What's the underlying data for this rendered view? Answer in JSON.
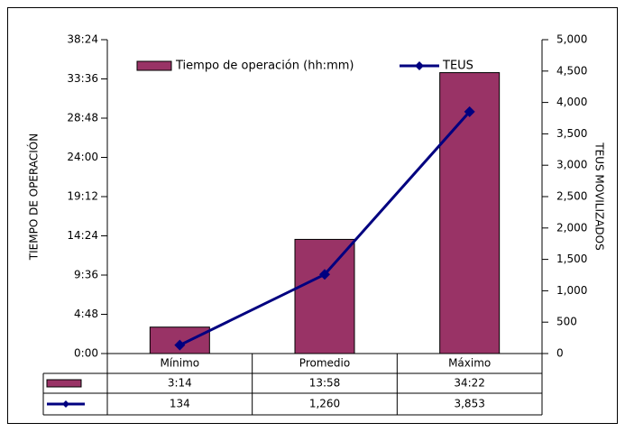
{
  "chart_data": {
    "type": "bar_line",
    "y_label": "TIEMPO DE OPERACIÓN",
    "y2_label": "TEUS MOVILIZADOS",
    "categories": [
      "Mínimo",
      "Promedio",
      "Máximo"
    ],
    "series": [
      {
        "name": "Tiempo de operación (hh:mm)",
        "type": "bar",
        "axis": "y",
        "color": "#993366",
        "values": [
          194,
          838,
          2062
        ],
        "value_labels": [
          "3:14",
          "13:58",
          "34:22"
        ]
      },
      {
        "name": "TEUS",
        "type": "line",
        "axis": "y2",
        "color": "#000080",
        "values": [
          134,
          1260,
          3853
        ],
        "value_labels": [
          "134",
          "1,260",
          "3,853"
        ]
      }
    ],
    "ylim": [
      0,
      2304
    ],
    "yticks": [
      {
        "value": 0,
        "label": "0:00"
      },
      {
        "value": 288,
        "label": "4:48"
      },
      {
        "value": 576,
        "label": "9:36"
      },
      {
        "value": 864,
        "label": "14:24"
      },
      {
        "value": 1152,
        "label": "19:12"
      },
      {
        "value": 1440,
        "label": "24:00"
      },
      {
        "value": 1728,
        "label": "28:48"
      },
      {
        "value": 2016,
        "label": "33:36"
      },
      {
        "value": 2304,
        "label": "38:24"
      }
    ],
    "y2lim": [
      0,
      5000
    ],
    "y2ticks": [
      0,
      500,
      {
        "value": 1000,
        "label": "1,000"
      },
      {
        "value": 1500,
        "label": "1,500"
      },
      {
        "value": 2000,
        "label": "2,000"
      },
      {
        "value": 2500,
        "label": "2,500"
      },
      {
        "value": 3000,
        "label": "3,000"
      },
      {
        "value": 3500,
        "label": "3,500"
      },
      {
        "value": 4000,
        "label": "4,000"
      },
      {
        "value": 4500,
        "label": "4,500"
      },
      {
        "value": 5000,
        "label": "5,000"
      }
    ],
    "legend": "top",
    "data_table": true
  }
}
